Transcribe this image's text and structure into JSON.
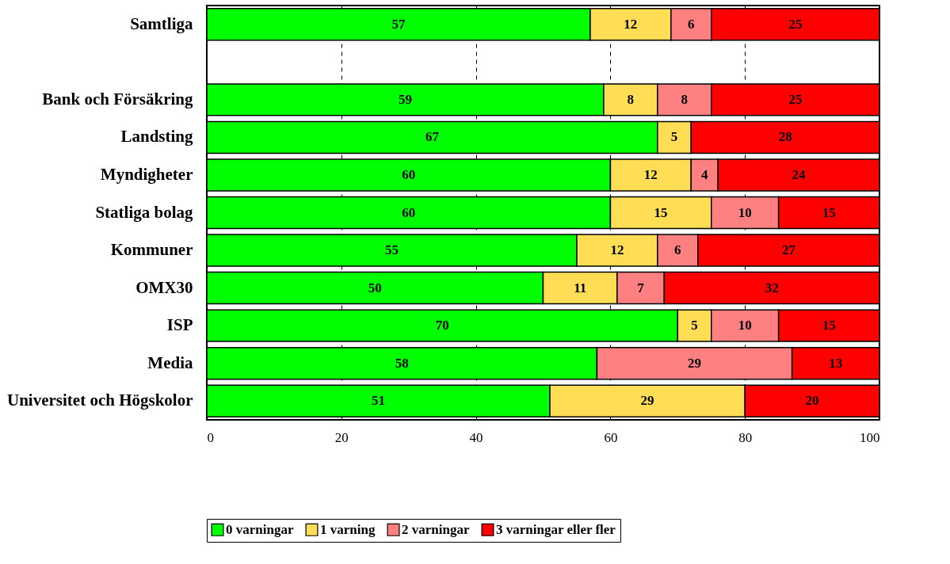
{
  "chart_data": {
    "type": "bar",
    "orientation": "horizontal",
    "stacked": true,
    "categories": [
      "Samtliga",
      null,
      "Bank och Försäkring",
      "Landsting",
      "Myndigheter",
      "Statliga bolag",
      "Kommuner",
      "OMX30",
      "ISP",
      "Media",
      "Universitet och Högskolor"
    ],
    "series": [
      {
        "name": "0 varningar",
        "color": "#00ff00",
        "values": [
          57,
          null,
          59,
          67,
          60,
          60,
          55,
          50,
          70,
          58,
          51
        ]
      },
      {
        "name": "1 varning",
        "color": "#ffdd55",
        "values": [
          12,
          null,
          8,
          5,
          12,
          15,
          12,
          11,
          5,
          null,
          29
        ]
      },
      {
        "name": "2 varningar",
        "color": "#ff8080",
        "values": [
          6,
          null,
          8,
          null,
          4,
          10,
          6,
          7,
          10,
          29,
          null
        ]
      },
      {
        "name": "3 varningar eller fler",
        "color": "#ff0000",
        "values": [
          25,
          null,
          25,
          28,
          24,
          15,
          27,
          32,
          15,
          13,
          20
        ]
      }
    ],
    "xlim": [
      0,
      100
    ],
    "xticks": [
      0,
      20,
      40,
      60,
      80,
      100
    ],
    "grid": "x",
    "legend": "bottom",
    "data_labels": true
  }
}
